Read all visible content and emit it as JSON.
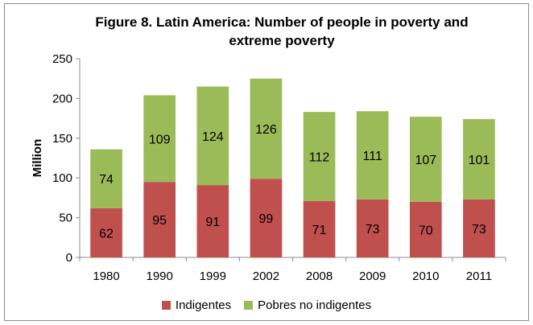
{
  "chart_data": {
    "type": "bar",
    "stacked": true,
    "title_lines": [
      "Figure 8. Latin America: Number of people in poverty and",
      "extreme poverty"
    ],
    "ylabel": "Million",
    "xlabel": "",
    "ylim": [
      0,
      250
    ],
    "yticks": [
      0,
      50,
      100,
      150,
      200,
      250
    ],
    "grid": false,
    "legend_position": "bottom",
    "categories": [
      "1980",
      "1990",
      "1999",
      "2002",
      "2008",
      "2009",
      "2010",
      "2011"
    ],
    "series": [
      {
        "name": "Indigentes",
        "color": "#c0504d",
        "values": [
          62,
          95,
          91,
          99,
          71,
          73,
          70,
          73
        ]
      },
      {
        "name": "Pobres no indigentes",
        "color": "#9bbb59",
        "values": [
          74,
          109,
          124,
          126,
          112,
          111,
          107,
          101
        ]
      }
    ]
  }
}
